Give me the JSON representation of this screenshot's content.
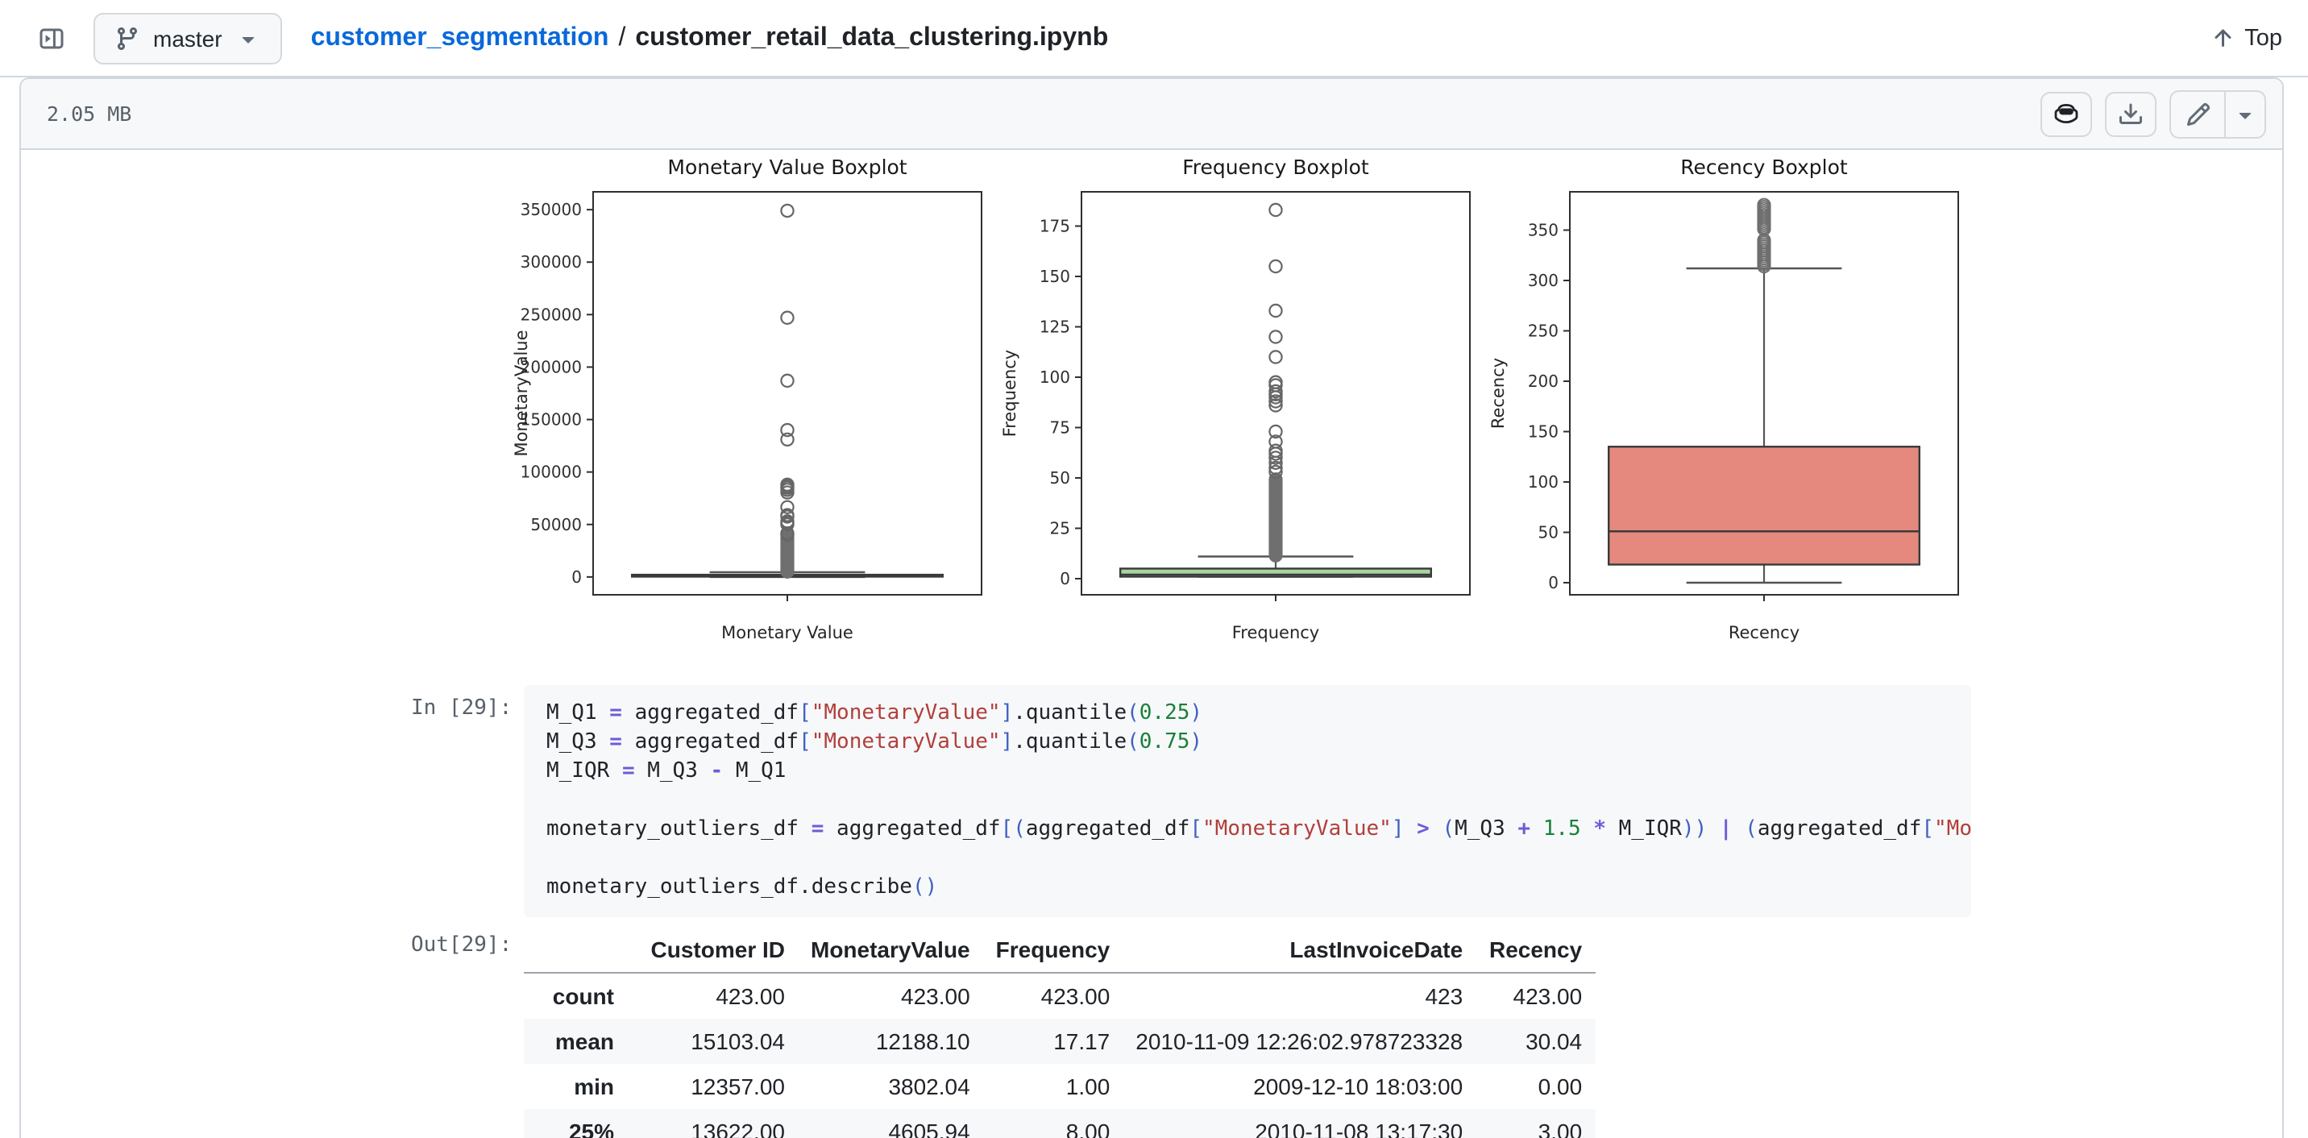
{
  "topbar": {
    "branch": "master",
    "repo": "customer_segmentation",
    "separator": "/",
    "file": "customer_retail_data_clustering.ipynb",
    "top_label": "Top",
    "icons": [
      "panel-toggle-icon",
      "git-branch-icon",
      "chevron-down-icon",
      "arrow-up-icon"
    ]
  },
  "blob_header": {
    "file_size": "2.05 MB",
    "actions": [
      {
        "icon": "copilot-icon"
      },
      {
        "icon": "download-icon"
      },
      {
        "icon": "pencil-icon"
      },
      {
        "icon": "triangle-down-icon"
      }
    ]
  },
  "notebook": {
    "in_label": "In [29]:",
    "out_label": "Out[29]:",
    "code_lines": [
      [
        [
          "p",
          "M_Q1 "
        ],
        [
          "o",
          "="
        ],
        [
          "p",
          " aggregated_df"
        ],
        [
          "b",
          "["
        ],
        [
          "s",
          "\"MonetaryValue\""
        ],
        [
          "b",
          "]"
        ],
        [
          "p",
          ".quantile"
        ],
        [
          "b",
          "("
        ],
        [
          "n",
          "0.25"
        ],
        [
          "b",
          ")"
        ]
      ],
      [
        [
          "p",
          "M_Q3 "
        ],
        [
          "o",
          "="
        ],
        [
          "p",
          " aggregated_df"
        ],
        [
          "b",
          "["
        ],
        [
          "s",
          "\"MonetaryValue\""
        ],
        [
          "b",
          "]"
        ],
        [
          "p",
          ".quantile"
        ],
        [
          "b",
          "("
        ],
        [
          "n",
          "0.75"
        ],
        [
          "b",
          ")"
        ]
      ],
      [
        [
          "p",
          "M_IQR "
        ],
        [
          "o",
          "="
        ],
        [
          "p",
          " M_Q3 "
        ],
        [
          "o",
          "-"
        ],
        [
          "p",
          " M_Q1"
        ]
      ],
      [],
      [
        [
          "p",
          "monetary_outliers_df "
        ],
        [
          "o",
          "="
        ],
        [
          "p",
          " aggregated_df"
        ],
        [
          "b",
          "[("
        ],
        [
          "p",
          "aggregated_df"
        ],
        [
          "b",
          "["
        ],
        [
          "s",
          "\"MonetaryValue\""
        ],
        [
          "b",
          "]"
        ],
        [
          "p",
          " "
        ],
        [
          "o",
          ">"
        ],
        [
          "p",
          " "
        ],
        [
          "b",
          "("
        ],
        [
          "p",
          "M_Q3 "
        ],
        [
          "o",
          "+"
        ],
        [
          "p",
          " "
        ],
        [
          "n",
          "1.5"
        ],
        [
          "p",
          " "
        ],
        [
          "o",
          "*"
        ],
        [
          "p",
          " M_IQR"
        ],
        [
          "b",
          "))"
        ],
        [
          "p",
          " "
        ],
        [
          "o",
          "|"
        ],
        [
          "p",
          " "
        ],
        [
          "b",
          "("
        ],
        [
          "p",
          "aggregated_df"
        ],
        [
          "b",
          "["
        ],
        [
          "s",
          "\"Mo"
        ]
      ],
      [],
      [
        [
          "p",
          "monetary_outliers_df.describe"
        ],
        [
          "b",
          "()"
        ]
      ]
    ],
    "output_table": {
      "headers": [
        "",
        "Customer ID",
        "MonetaryValue",
        "Frequency",
        "LastInvoiceDate",
        "Recency"
      ],
      "rows": [
        [
          "count",
          "423.00",
          "423.00",
          "423.00",
          "423",
          "423.00"
        ],
        [
          "mean",
          "15103.04",
          "12188.10",
          "17.17",
          "2010-11-09 12:26:02.978723328",
          "30.04"
        ],
        [
          "min",
          "12357.00",
          "3802.04",
          "1.00",
          "2009-12-10 18:03:00",
          "0.00"
        ],
        [
          "25%",
          "13622.00",
          "4605.94",
          "8.00",
          "2010-11-08 13:17:30",
          "3.00"
        ]
      ]
    }
  },
  "chart_data": {
    "type": "boxplot",
    "legend_position": "none",
    "grid": false,
    "plots": [
      {
        "title": "Monetary Value Boxplot",
        "ylabel": "MonetaryValue",
        "xlabel": "Monetary Value",
        "ylim": [
          -17000,
          367000
        ],
        "yticks": [
          0,
          50000,
          100000,
          150000,
          200000,
          250000,
          300000,
          350000
        ],
        "box": {
          "q1": 300,
          "median": 900,
          "q3": 2100,
          "whisker_low": 0,
          "whisker_high": 4500
        },
        "box_color": "#9bb8d4",
        "outlier_bands": [
          [
            5000,
            38000,
            700
          ]
        ],
        "outliers": [
          40000,
          41500,
          50000,
          51500,
          53000,
          57500,
          59000,
          66500,
          80500,
          83000,
          85000,
          86500,
          88000,
          131000,
          140000,
          187000,
          247000,
          349000
        ]
      },
      {
        "title": "Frequency Boxplot",
        "ylabel": "Frequency",
        "xlabel": "Frequency",
        "ylim": [
          -8,
          192
        ],
        "yticks": [
          0,
          25,
          50,
          75,
          100,
          125,
          150,
          175
        ],
        "box": {
          "q1": 1,
          "median": 2,
          "q3": 5,
          "whisker_low": 1,
          "whisker_high": 11
        },
        "box_color": "#a8d5a0",
        "outlier_bands": [
          [
            11.5,
            50,
            0.7
          ]
        ],
        "outliers": [
          53,
          55,
          57.5,
          60,
          62,
          63.5,
          68,
          73,
          86,
          88,
          90,
          91.5,
          93,
          96,
          97.5,
          110,
          120,
          133,
          155,
          183
        ]
      },
      {
        "title": "Recency Boxplot",
        "ylabel": "Recency",
        "xlabel": "Recency",
        "ylim": [
          -12,
          388
        ],
        "yticks": [
          0,
          50,
          100,
          150,
          200,
          250,
          300,
          350
        ],
        "box": {
          "q1": 18,
          "median": 51,
          "q3": 135,
          "whisker_low": 0,
          "whisker_high": 312
        },
        "box_color": "#e5897e",
        "outlier_bands": [
          [
            314,
            341,
            2
          ],
          [
            351,
            375,
            2
          ]
        ],
        "outliers": []
      }
    ]
  }
}
